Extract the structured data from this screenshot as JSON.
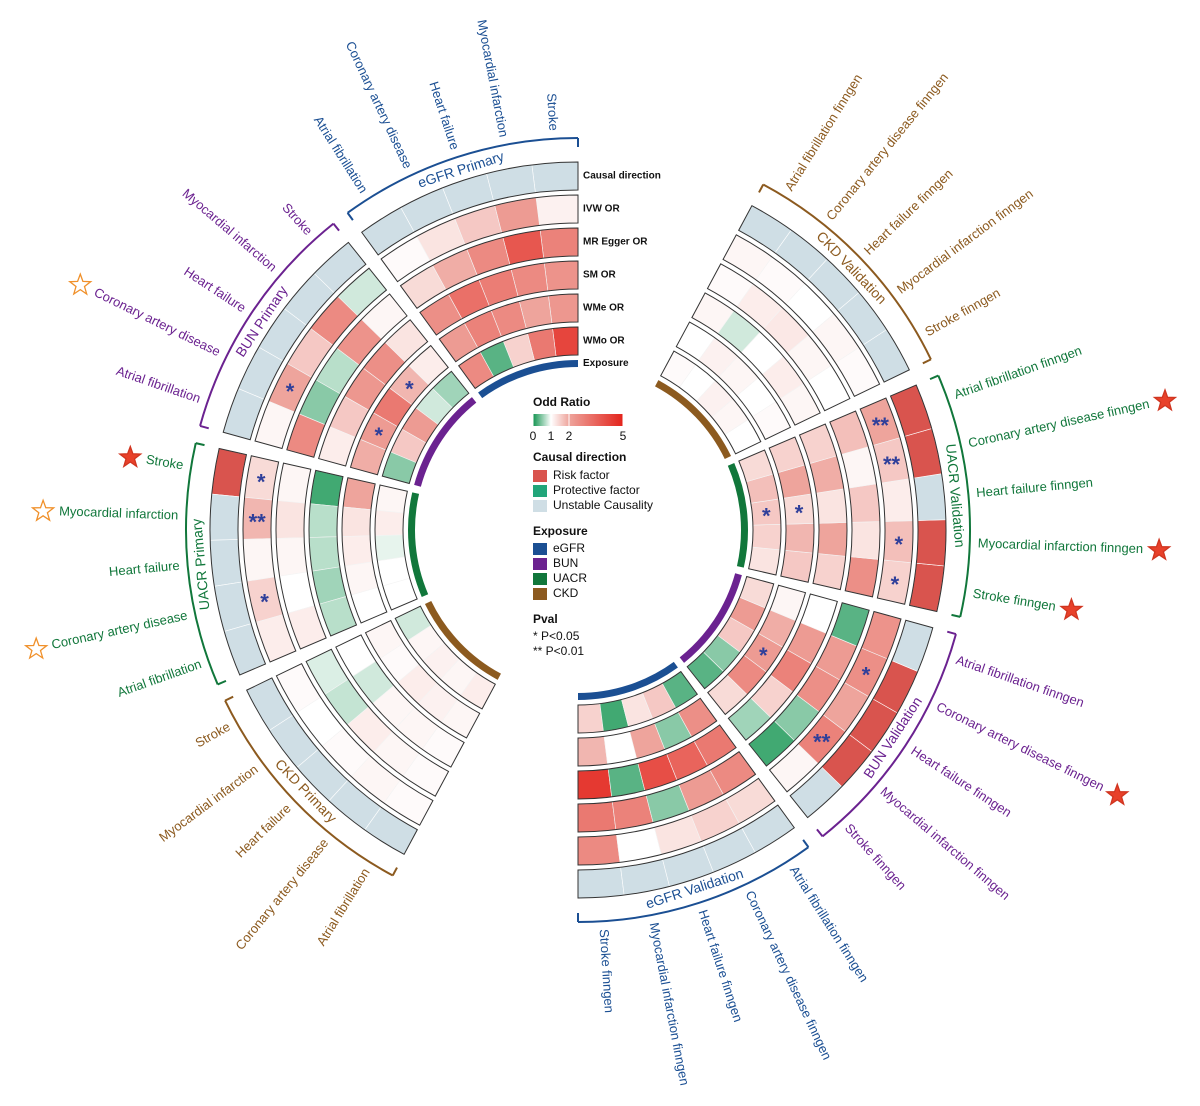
{
  "chart_data": {
    "type": "circular-heatmap",
    "ring_labels": {
      "direction": "Causal direction",
      "or": [
        "IVW OR",
        "MR Egger OR",
        "SM OR",
        "WMe OR",
        "WMo OR"
      ],
      "exposure": "Exposure"
    },
    "color_scale": {
      "title": "Odd Ratio",
      "stops": [
        {
          "value": 0,
          "color": "#12934f"
        },
        {
          "value": 1,
          "color": "#ffffff"
        },
        {
          "value": 2,
          "color": "#eea49c"
        },
        {
          "value": 5,
          "color": "#e3231b"
        }
      ]
    },
    "direction_legend": {
      "title": "Causal direction",
      "items": [
        {
          "name": "Risk factor",
          "color": "#d9544e"
        },
        {
          "name": "Protective factor",
          "color": "#22a57a"
        },
        {
          "name": "Unstable Causality",
          "color": "#cfdee5"
        }
      ]
    },
    "exposure_legend": {
      "title": "Exposure",
      "items": [
        {
          "name": "eGFR",
          "color": "#1b4f93"
        },
        {
          "name": "BUN",
          "color": "#6b2290"
        },
        {
          "name": "UACR",
          "color": "#11773b"
        },
        {
          "name": "CKD",
          "color": "#8c5a1f"
        }
      ]
    },
    "pval_legend": {
      "title": "Pval",
      "items": [
        "* P<0.05",
        "** P<0.01"
      ]
    },
    "groups": [
      {
        "name": "eGFR Primary",
        "exposure": "eGFR",
        "side": "left",
        "outcomes": [
          "Stroke",
          "Myocardial infarction",
          "Heart failure",
          "Coronary artery disease",
          "Atrial fibrillation"
        ],
        "direction": [
          "Unstable Causality",
          "Unstable Causality",
          "Unstable Causality",
          "Unstable Causality",
          "Unstable Causality"
        ],
        "or": [
          [
            1.15,
            2.2,
            1.6,
            1.3,
            1.05
          ],
          [
            2.8,
            3.8,
            2.6,
            1.9,
            1.4
          ],
          [
            2.4,
            2.6,
            2.9,
            3.2,
            2.5
          ],
          [
            2.3,
            2.0,
            2.6,
            2.8,
            2.2
          ],
          [
            4.2,
            3.0,
            1.5,
            0.3,
            2.6
          ]
        ],
        "pval": [
          [
            null,
            null,
            null,
            null,
            null
          ],
          [
            null,
            null,
            null,
            null,
            null
          ],
          [
            null,
            null,
            null,
            null,
            null
          ],
          [
            null,
            null,
            null,
            null,
            null
          ],
          [
            null,
            null,
            null,
            null,
            null
          ]
        ],
        "markers": [
          null,
          null,
          null,
          null,
          null
        ]
      },
      {
        "name": "BUN Primary",
        "exposure": "BUN",
        "side": "left",
        "outcomes": [
          "Stroke",
          "Myocardial infarction",
          "Heart failure",
          "Coronary artery disease",
          "Atrial fibrillation"
        ],
        "direction": [
          "Unstable Causality",
          "Unstable Causality",
          "Unstable Causality",
          "Unstable Causality",
          "Unstable Causality"
        ],
        "or": [
          [
            0.8,
            2.6,
            1.6,
            2.0,
            1.1
          ],
          [
            1.1,
            2.4,
            0.7,
            0.5,
            2.6
          ],
          [
            1.3,
            2.5,
            2.3,
            1.6,
            1.2
          ],
          [
            1.2,
            1.8,
            3.0,
            2.2,
            1.9
          ],
          [
            0.6,
            0.8,
            2.2,
            1.6,
            0.5
          ]
        ],
        "pval": [
          [
            null,
            null,
            null,
            "*",
            null
          ],
          [
            null,
            null,
            null,
            null,
            null
          ],
          [
            null,
            null,
            null,
            null,
            null
          ],
          [
            null,
            "*",
            null,
            "*",
            null
          ],
          [
            null,
            null,
            null,
            null,
            null
          ]
        ],
        "markers": [
          null,
          null,
          null,
          "hollow",
          null
        ]
      },
      {
        "name": "UACR Primary",
        "exposure": "UACR",
        "side": "left",
        "outcomes": [
          "Stroke",
          "Myocardial infarction",
          "Heart failure",
          "Coronary artery disease",
          "Atrial fibrillation"
        ],
        "direction": [
          "Risk factor",
          "Unstable Causality",
          "Unstable Causality",
          "Unstable Causality",
          "Unstable Causality"
        ],
        "or": [
          [
            1.4,
            1.8,
            1.1,
            1.5,
            1.2
          ],
          [
            1.1,
            1.3,
            1.1,
            1.0,
            1.2
          ],
          [
            0.2,
            0.7,
            0.7,
            0.6,
            0.7
          ],
          [
            2.0,
            1.3,
            1.2,
            1.1,
            1.0
          ],
          [
            1.1,
            1.2,
            0.9,
            1.0,
            1.0
          ]
        ],
        "pval": [
          [
            "*",
            "**",
            null,
            "*",
            null
          ],
          [
            null,
            null,
            null,
            null,
            null
          ],
          [
            null,
            null,
            null,
            null,
            null
          ],
          [
            null,
            null,
            null,
            null,
            null
          ],
          [
            null,
            null,
            null,
            null,
            null
          ]
        ],
        "markers": [
          "filled",
          "hollow",
          null,
          "hollow",
          null
        ]
      },
      {
        "name": "CKD Primary",
        "exposure": "CKD",
        "side": "left",
        "outcomes": [
          "Stroke",
          "Myocardial infarction",
          "Heart failure",
          "Coronary artery disease",
          "Atrial fibrillation"
        ],
        "direction": [
          "Unstable Causality",
          "Unstable Causality",
          "Unstable Causality",
          "Unstable Causality",
          "Unstable Causality"
        ],
        "or": [
          [
            1.05,
            1.0,
            1.05,
            1.1,
            1.05
          ],
          [
            0.85,
            0.75,
            1.2,
            1.1,
            1.05
          ],
          [
            1.0,
            0.8,
            1.1,
            1.1,
            1.05
          ],
          [
            1.1,
            1.05,
            1.2,
            1.15,
            1.1
          ],
          [
            0.8,
            1.1,
            1.15,
            1.1,
            1.2
          ]
        ],
        "pval": [
          [
            null,
            null,
            null,
            null,
            null
          ],
          [
            null,
            null,
            null,
            null,
            null
          ],
          [
            null,
            null,
            null,
            null,
            null
          ],
          [
            null,
            null,
            null,
            null,
            null
          ],
          [
            null,
            null,
            null,
            null,
            null
          ]
        ],
        "markers": [
          null,
          null,
          null,
          null,
          null
        ]
      },
      {
        "name": "eGFR Validation",
        "exposure": "eGFR",
        "side": "right",
        "outcomes": [
          "Stroke finngen",
          "Myocardial infarction finngen",
          "Heart failure finngen",
          "Coronary artery disease finngen",
          "Atrial fibrillation finngen"
        ],
        "direction": [
          "Unstable Causality",
          "Unstable Causality",
          "Unstable Causality",
          "Unstable Causality",
          "Unstable Causality"
        ],
        "or": [
          [
            2.6,
            1.0,
            1.3,
            1.5,
            1.4
          ],
          [
            3.0,
            2.8,
            0.5,
            2.2,
            2.6
          ],
          [
            4.5,
            0.3,
            4.0,
            3.5,
            3.0
          ],
          [
            1.8,
            1.0,
            2.0,
            0.5,
            2.5
          ],
          [
            1.5,
            0.2,
            1.3,
            1.6,
            0.3
          ]
        ],
        "pval": [
          [
            null,
            null,
            null,
            null,
            null
          ],
          [
            null,
            null,
            null,
            null,
            null
          ],
          [
            null,
            null,
            null,
            null,
            null
          ],
          [
            null,
            null,
            null,
            null,
            null
          ],
          [
            null,
            null,
            null,
            null,
            null
          ]
        ],
        "markers": [
          null,
          null,
          null,
          null,
          null
        ]
      },
      {
        "name": "BUN Validation",
        "exposure": "BUN",
        "side": "right",
        "outcomes": [
          "Stroke finngen",
          "Myocardial infarction finngen",
          "Heart failure finngen",
          "Coronary artery disease finngen",
          "Atrial fibrillation finngen"
        ],
        "direction": [
          "Unstable Causality",
          "Risk factor",
          "Risk factor",
          "Risk factor",
          "Unstable Causality"
        ],
        "or": [
          [
            1.1,
            2.8,
            2.0,
            2.5,
            2.4
          ],
          [
            0.2,
            0.5,
            2.5,
            2.2,
            0.3
          ],
          [
            0.6,
            1.5,
            2.8,
            2.2,
            1.0
          ],
          [
            1.4,
            2.6,
            2.2,
            1.9,
            1.1
          ],
          [
            0.3,
            0.5,
            1.6,
            2.2,
            1.4
          ]
        ],
        "pval": [
          [
            null,
            "**",
            null,
            "*",
            null
          ],
          [
            null,
            null,
            null,
            null,
            null
          ],
          [
            null,
            null,
            null,
            null,
            null
          ],
          [
            null,
            null,
            "*",
            null,
            null
          ],
          [
            null,
            null,
            null,
            null,
            null
          ]
        ],
        "markers": [
          null,
          null,
          null,
          "filled",
          null
        ]
      },
      {
        "name": "UACR Validation",
        "exposure": "UACR",
        "side": "right",
        "outcomes": [
          "Stroke finngen",
          "Myocardial infarction finngen",
          "Heart failure finngen",
          "Coronary artery disease finngen",
          "Atrial fibrillation finngen"
        ],
        "direction": [
          "Risk factor",
          "Risk factor",
          "Unstable Causality",
          "Risk factor",
          "Risk factor"
        ],
        "or": [
          [
            1.5,
            1.7,
            1.2,
            1.6,
            2.0
          ],
          [
            2.5,
            1.3,
            1.6,
            1.1,
            1.7
          ],
          [
            1.5,
            2.0,
            1.3,
            1.9,
            1.5
          ],
          [
            1.6,
            1.8,
            1.4,
            2.0,
            1.5
          ],
          [
            1.3,
            1.5,
            1.6,
            1.7,
            1.4
          ]
        ],
        "pval": [
          [
            "*",
            "*",
            null,
            "**",
            "**"
          ],
          [
            null,
            null,
            null,
            null,
            null
          ],
          [
            null,
            null,
            null,
            null,
            null
          ],
          [
            null,
            null,
            "*",
            null,
            null
          ],
          [
            null,
            null,
            "*",
            null,
            null
          ]
        ],
        "markers": [
          "filled",
          "filled",
          null,
          "filled",
          null
        ]
      },
      {
        "name": "CKD Validation",
        "exposure": "CKD",
        "side": "right",
        "outcomes": [
          "Stroke finngen",
          "Myocardial infarction finngen",
          "Heart failure finngen",
          "Coronary artery disease finngen",
          "Atrial fibrillation finngen"
        ],
        "direction": [
          "Unstable Causality",
          "Unstable Causality",
          "Unstable Causality",
          "Unstable Causality",
          "Unstable Causality"
        ],
        "or": [
          [
            1.05,
            1.1,
            1.0,
            1.05,
            1.1
          ],
          [
            1.0,
            1.1,
            1.25,
            1.2,
            1.05
          ],
          [
            1.1,
            1.2,
            1.0,
            0.8,
            1.1
          ],
          [
            1.05,
            1.0,
            1.1,
            1.15,
            1.0
          ],
          [
            1.0,
            1.1,
            1.15,
            1.0,
            1.05
          ]
        ],
        "pval": [
          [
            null,
            null,
            null,
            null,
            null
          ],
          [
            null,
            null,
            null,
            null,
            null
          ],
          [
            null,
            null,
            null,
            null,
            null
          ],
          [
            null,
            null,
            null,
            null,
            null
          ],
          [
            null,
            null,
            null,
            null,
            null
          ]
        ],
        "markers": [
          null,
          null,
          null,
          null,
          null
        ]
      }
    ]
  }
}
